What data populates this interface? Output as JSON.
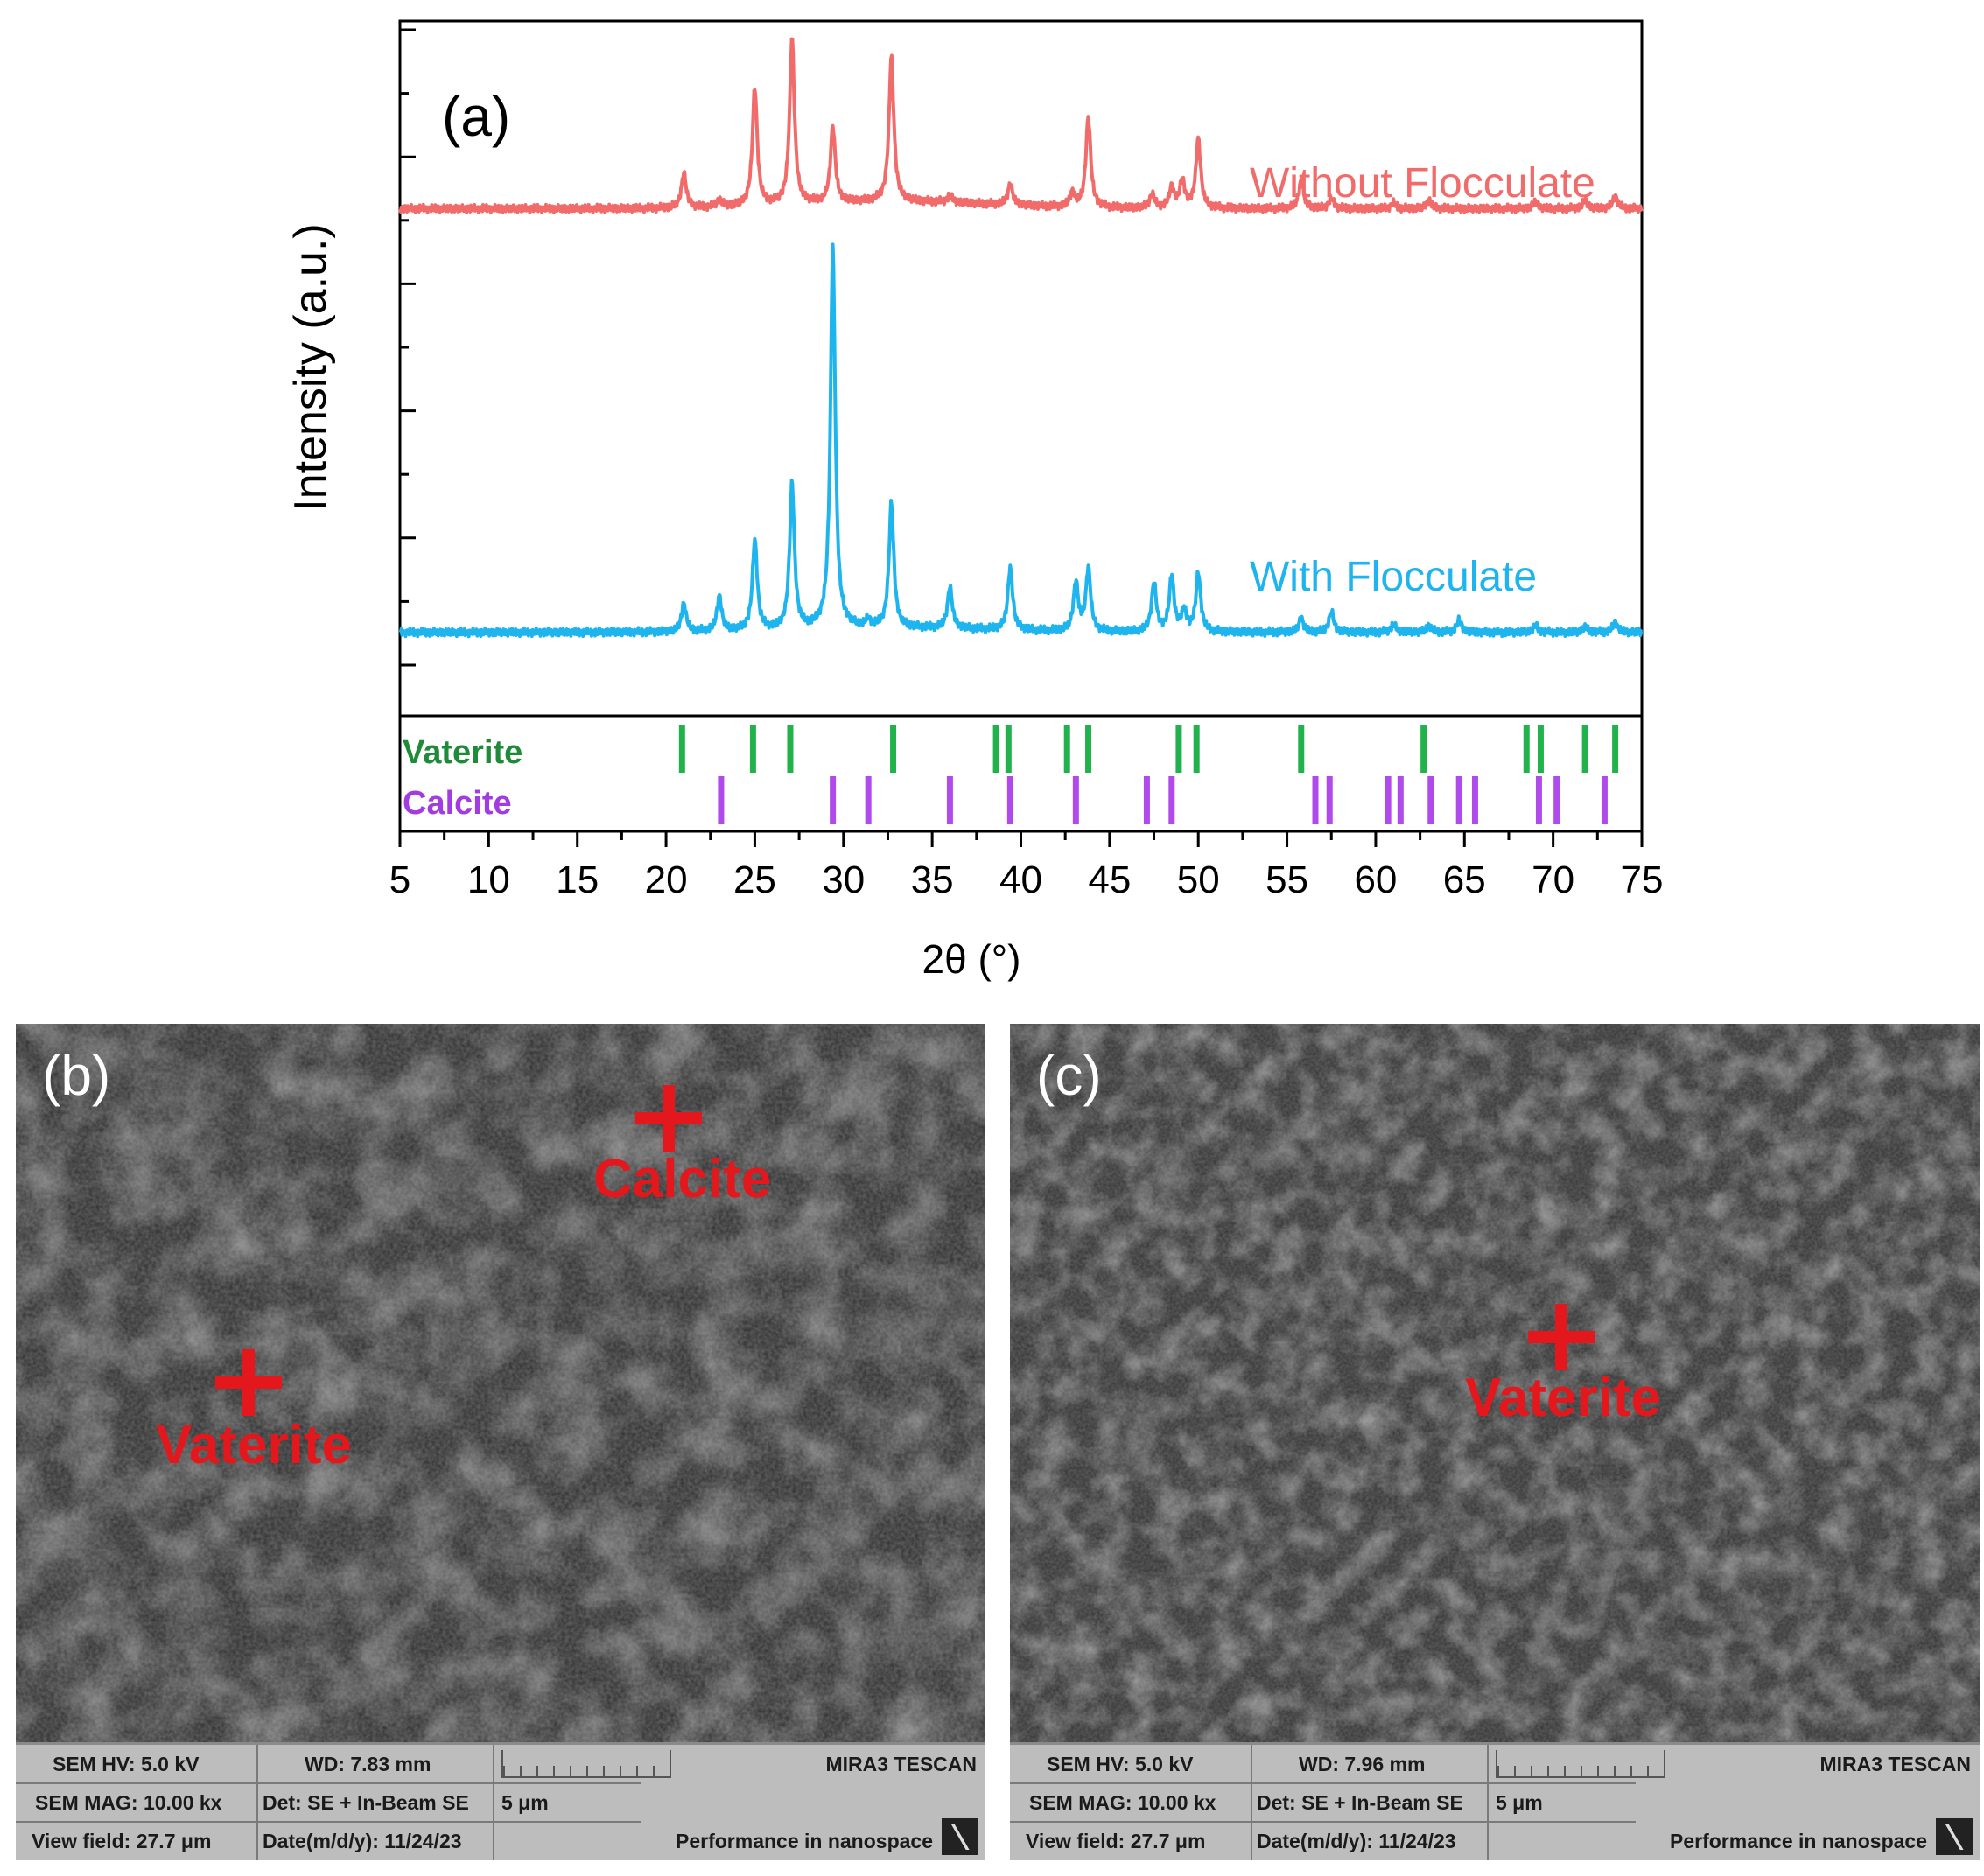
{
  "chart_data": {
    "type": "line",
    "panel_label": "(a)",
    "xlabel": "2θ (°)",
    "ylabel": "Intensity (a.u.)",
    "xlim": [
      5,
      75
    ],
    "ylim": [
      0,
      100
    ],
    "x_ticks": [
      5,
      10,
      15,
      20,
      25,
      30,
      35,
      40,
      45,
      50,
      55,
      60,
      65,
      70,
      75
    ],
    "color_without": "#f26b6b",
    "color_with": "#1eb4ee",
    "series": [
      {
        "name": "Without Flocculate",
        "color": "#f26b6b",
        "baseline": 73,
        "peaks": [
          [
            21,
            5
          ],
          [
            23,
            1
          ],
          [
            25,
            17
          ],
          [
            27.1,
            24
          ],
          [
            29.4,
            11
          ],
          [
            32.7,
            21
          ],
          [
            36,
            1
          ],
          [
            39.4,
            3
          ],
          [
            42.9,
            2
          ],
          [
            43.8,
            13
          ],
          [
            47.4,
            2
          ],
          [
            48.5,
            3
          ],
          [
            49.1,
            4
          ],
          [
            50,
            10
          ],
          [
            55.8,
            4
          ],
          [
            57.5,
            1.5
          ],
          [
            61,
            0.8
          ],
          [
            63,
            1.2
          ],
          [
            69,
            1
          ],
          [
            71.8,
            1.2
          ],
          [
            73.5,
            1.8
          ]
        ]
      },
      {
        "name": "With Flocculate",
        "color": "#1eb4ee",
        "baseline": 12,
        "peaks": [
          [
            21,
            4
          ],
          [
            23,
            5
          ],
          [
            25,
            13
          ],
          [
            27.1,
            21
          ],
          [
            29.4,
            55
          ],
          [
            31.4,
            1
          ],
          [
            32.7,
            18
          ],
          [
            36,
            6
          ],
          [
            39.4,
            9
          ],
          [
            43.1,
            7
          ],
          [
            43.8,
            9
          ],
          [
            47.5,
            7
          ],
          [
            48.5,
            8
          ],
          [
            49.2,
            3
          ],
          [
            50,
            8.5
          ],
          [
            55.8,
            2
          ],
          [
            57.5,
            3
          ],
          [
            61,
            1.2
          ],
          [
            63,
            1
          ],
          [
            64.7,
            1.8
          ],
          [
            69,
            1
          ],
          [
            71.8,
            0.8
          ],
          [
            73.5,
            1.5
          ]
        ]
      }
    ],
    "reference_phases": [
      {
        "name": "Vaterite",
        "color": "#21b24b",
        "positions": [
          20.9,
          24.9,
          27.0,
          32.8,
          38.6,
          39.3,
          42.6,
          43.8,
          48.9,
          49.9,
          55.8,
          62.7,
          68.5,
          69.3,
          71.8,
          73.5
        ]
      },
      {
        "name": "Calcite",
        "color": "#b04aea",
        "positions": [
          23.1,
          29.4,
          31.4,
          36.0,
          39.4,
          43.1,
          47.1,
          48.5,
          56.6,
          57.4,
          60.7,
          61.4,
          63.1,
          64.7,
          65.6,
          69.2,
          70.2,
          72.9
        ]
      }
    ]
  },
  "sem_b": {
    "panel_label": "(b)",
    "markers": [
      {
        "label": "Calcite"
      },
      {
        "label": "Vaterite"
      }
    ],
    "info": {
      "hv": "SEM HV: 5.0 kV",
      "wd": "WD: 7.83 mm",
      "brand": "MIRA3 TESCAN",
      "mag": "SEM MAG: 10.00 kx",
      "det": "Det: SE + In-Beam SE",
      "scale": "5 μm",
      "view": "View field: 27.7 μm",
      "date": "Date(m/d/y): 11/24/23",
      "slogan": "Performance in nanospace"
    }
  },
  "sem_c": {
    "panel_label": "(c)",
    "markers": [
      {
        "label": "Vaterite"
      }
    ],
    "info": {
      "hv": "SEM HV: 5.0 kV",
      "wd": "WD: 7.96 mm",
      "brand": "MIRA3 TESCAN",
      "mag": "SEM MAG: 10.00 kx",
      "det": "Det: SE + In-Beam SE",
      "scale": "5 μm",
      "view": "View field: 27.7 μm",
      "date": "Date(m/d/y): 11/24/23",
      "slogan": "Performance in nanospace"
    }
  }
}
